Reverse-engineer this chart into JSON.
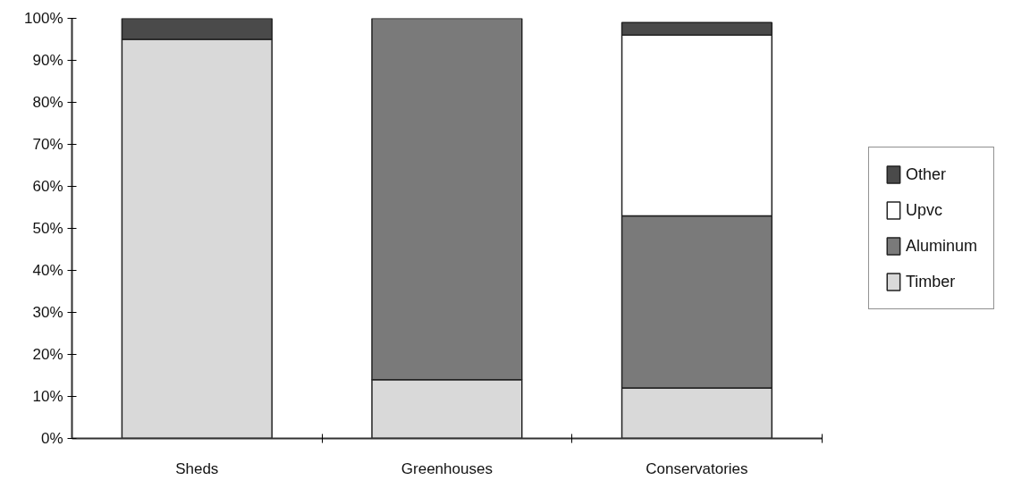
{
  "chart_data": {
    "type": "bar",
    "stacked": true,
    "categories": [
      "Sheds",
      "Greenhouses",
      "Conservatories"
    ],
    "series": [
      {
        "name": "Timber",
        "color": "#d9d9d9",
        "values": [
          95,
          14,
          12
        ]
      },
      {
        "name": "Aluminum",
        "color": "#7a7a7a",
        "values": [
          0,
          86,
          41
        ]
      },
      {
        "name": "Upvc",
        "color": "#ffffff",
        "values": [
          0,
          0,
          43
        ]
      },
      {
        "name": "Other",
        "color": "#4a4a4a",
        "values": [
          5,
          0,
          3
        ]
      }
    ],
    "ylim": [
      0,
      100
    ],
    "yticks": [
      {
        "value": 0,
        "label": "0%"
      },
      {
        "value": 10,
        "label": "10%"
      },
      {
        "value": 20,
        "label": "20%"
      },
      {
        "value": 30,
        "label": "30%"
      },
      {
        "value": 40,
        "label": "40%"
      },
      {
        "value": 50,
        "label": "50%"
      },
      {
        "value": 60,
        "label": "60%"
      },
      {
        "value": 70,
        "label": "70%"
      },
      {
        "value": 80,
        "label": "80%"
      },
      {
        "value": 90,
        "label": "90%"
      },
      {
        "value": 100,
        "label": "100%"
      }
    ],
    "grid": false,
    "legend": "right"
  }
}
